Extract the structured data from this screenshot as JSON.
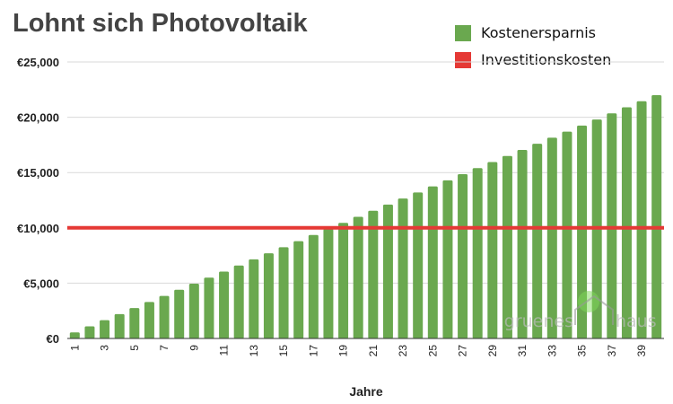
{
  "chart_data": {
    "type": "bar",
    "title": "Lohnt sich Photovoltaik",
    "xlabel": "Jahre",
    "ylabel": "",
    "ylim": [
      0,
      25000
    ],
    "yticks": [
      "€0",
      "€5,000",
      "€10,000",
      "€15,000",
      "€20,000",
      "€25,000"
    ],
    "ytick_values": [
      0,
      5000,
      10000,
      15000,
      20000,
      25000
    ],
    "grid": true,
    "legend_position": "top-right",
    "categories": [
      1,
      2,
      3,
      4,
      5,
      6,
      7,
      8,
      9,
      10,
      11,
      12,
      13,
      14,
      15,
      16,
      17,
      18,
      19,
      20,
      21,
      22,
      23,
      24,
      25,
      26,
      27,
      28,
      29,
      30,
      31,
      32,
      33,
      34,
      35,
      36,
      37,
      38,
      39,
      40
    ],
    "xtick_labels_shown": [
      1,
      3,
      5,
      7,
      9,
      11,
      13,
      15,
      17,
      19,
      21,
      23,
      25,
      27,
      29,
      31,
      33,
      35,
      37,
      39
    ],
    "series": [
      {
        "name": "Kostenersparnis",
        "type": "bar",
        "color": "#6aa84f",
        "values": [
          550,
          1100,
          1650,
          2200,
          2750,
          3300,
          3850,
          4400,
          4950,
          5500,
          6050,
          6600,
          7150,
          7700,
          8250,
          8800,
          9350,
          9900,
          10450,
          11000,
          11550,
          12100,
          12650,
          13200,
          13750,
          14300,
          14850,
          15400,
          15950,
          16500,
          17050,
          17600,
          18150,
          18700,
          19250,
          19800,
          20350,
          20900,
          21450,
          22000
        ]
      },
      {
        "name": "Investitionskosten",
        "type": "line",
        "color": "#e53935",
        "value": 10000
      }
    ]
  },
  "watermark": {
    "text_left": "gruenes",
    "text_right": "haus"
  }
}
